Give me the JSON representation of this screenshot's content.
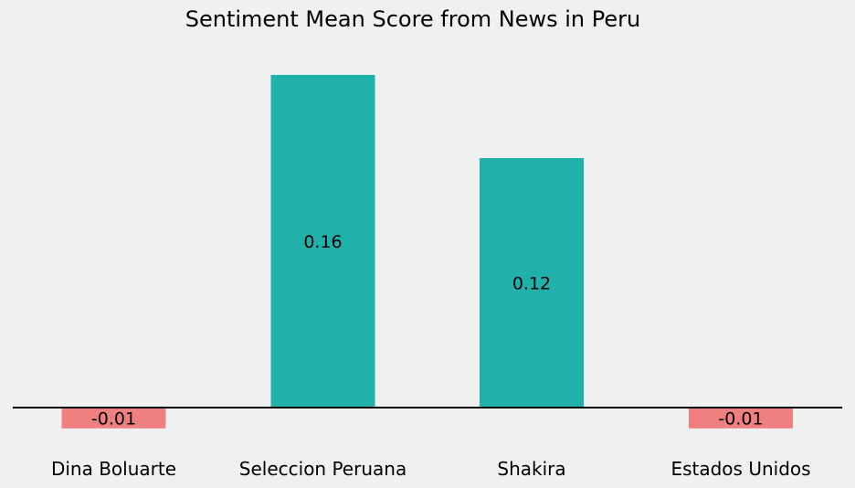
{
  "chart_data": {
    "type": "bar",
    "title": "Sentiment Mean Score from News in Peru",
    "xlabel": "",
    "ylabel": "",
    "categories": [
      "Dina Boluarte",
      "Seleccion Peruana",
      "Shakira",
      "Estados Unidos"
    ],
    "values": [
      -0.01,
      0.16,
      0.12,
      -0.01
    ],
    "value_labels": [
      "-0.01",
      "0.16",
      "0.12",
      "-0.01"
    ],
    "ylim": [
      -0.01,
      0.16
    ],
    "grid": false,
    "legend": "none",
    "colors": {
      "positive": "#20b2aa",
      "negative": "#f08080",
      "background": "#f0f0f0",
      "baseline": "#000000"
    }
  }
}
